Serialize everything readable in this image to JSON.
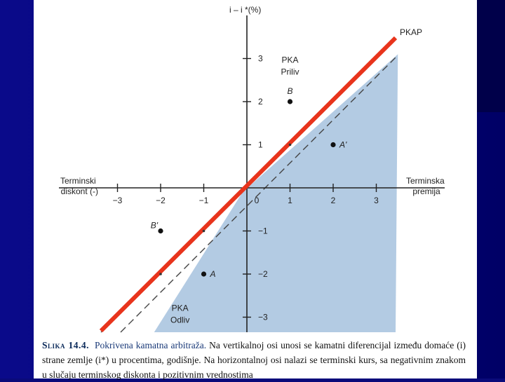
{
  "chart_data": {
    "type": "scatter",
    "title": "",
    "ylabel": "i – i *(%)",
    "xlabel_left": [
      "Terminski",
      "diskont (-)"
    ],
    "xlabel_right": [
      "Terminska",
      "premija"
    ],
    "xlim": [
      -3.5,
      3.5
    ],
    "ylim": [
      -3.5,
      4.2
    ],
    "x_ticks": [
      -3,
      -2,
      -1,
      0,
      1,
      2,
      3
    ],
    "x_tick_labels": [
      "−3",
      "−2",
      "−1",
      "0",
      "1",
      "2",
      "3"
    ],
    "y_ticks": [
      -3,
      -2,
      -1,
      1,
      2,
      3
    ],
    "y_tick_labels": [
      "−3",
      "−2",
      "−1",
      "1",
      "2",
      "3"
    ],
    "parity_line_label": "PKAP",
    "points": [
      {
        "name": "B",
        "x": 1,
        "y": 2
      },
      {
        "name": "A'",
        "x": 2,
        "y": 1
      },
      {
        "name": "B'",
        "x": -2,
        "y": -1
      },
      {
        "name": "A",
        "x": -1,
        "y": -2
      }
    ],
    "regions": [
      {
        "lines": [
          "PKA",
          "Priliv"
        ],
        "x": 1,
        "y": 2.9
      },
      {
        "lines": [
          "PKA",
          "Odliv"
        ],
        "x": -1.55,
        "y": -2.85
      }
    ]
  },
  "caption": {
    "label": "Slika 14.4.",
    "title": "Pokrivena kamatna arbitraža.",
    "text": "Na vertikalnoj osi unosi se kamatni diferencijal između domaće (i) strane zemlje (i*) u procentima, godišnje. Na horizontalnoj osi nalazi se terminski kurs, sa negativnim znakom u slučaju terminskog diskonta i pozitivnim vrednostima"
  },
  "colors": {
    "shade": "#b3cbe3",
    "parity": "#e8341c",
    "axis": "#222222",
    "slide": "#0a0a7a"
  }
}
